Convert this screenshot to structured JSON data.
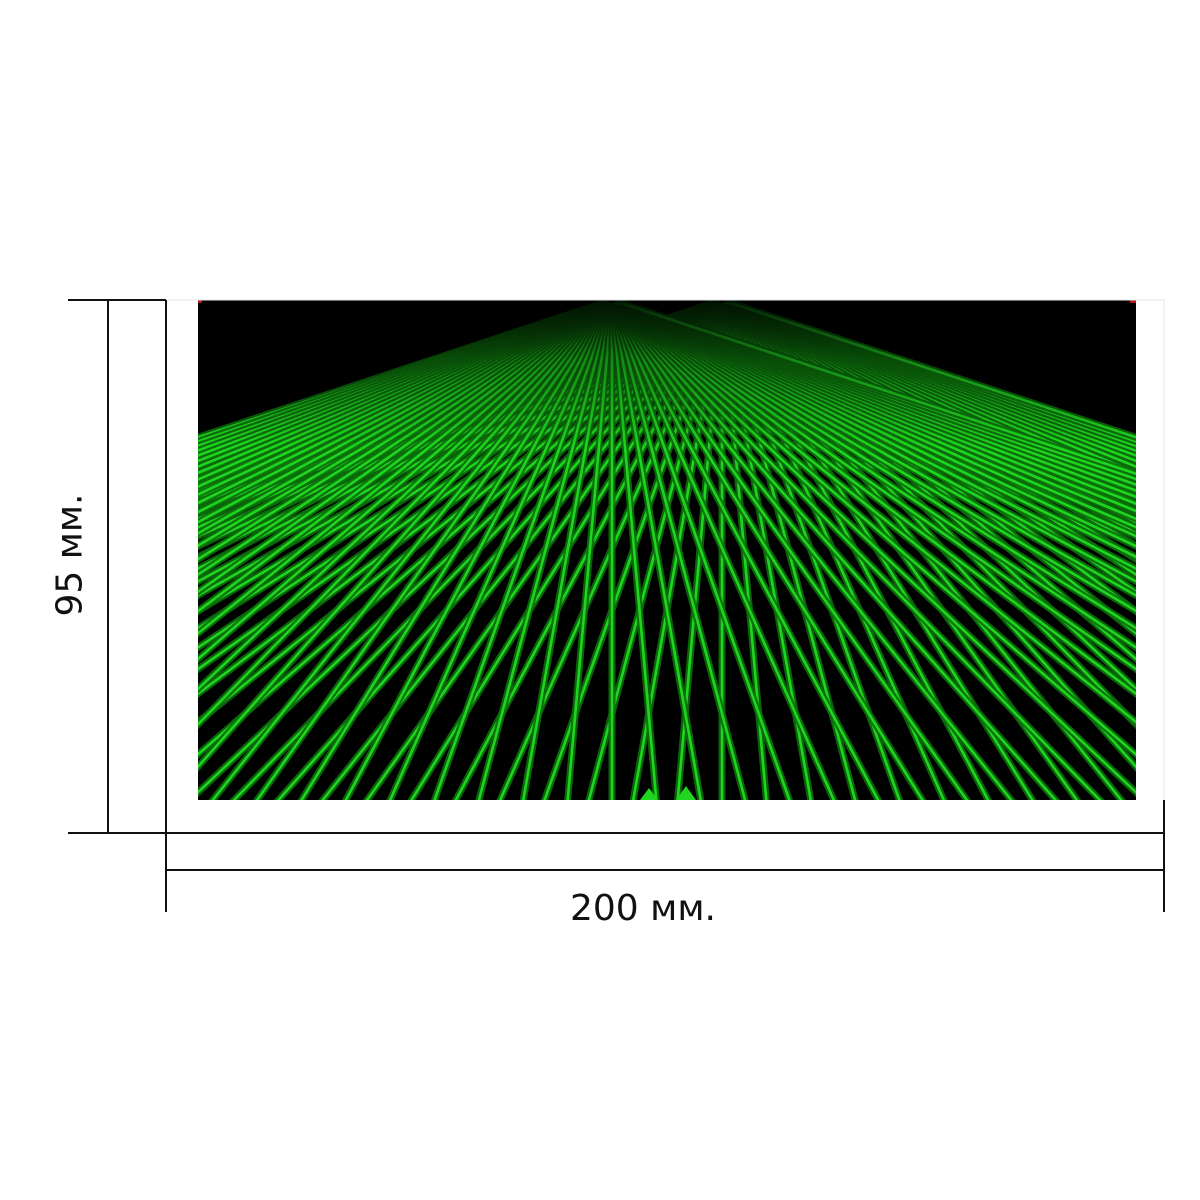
{
  "dimensions": {
    "width_label": "200 мм.",
    "height_label": "95 мм."
  },
  "artwork": {
    "subject": "green-fractal-grid-perspective",
    "colors": {
      "background": "#000000",
      "line": "#1fd51f",
      "line_dark": "#0b6e0b",
      "accent_red": "#b01818"
    }
  },
  "colors": {
    "dimension_line": "#111111",
    "page_background": "#ffffff"
  }
}
